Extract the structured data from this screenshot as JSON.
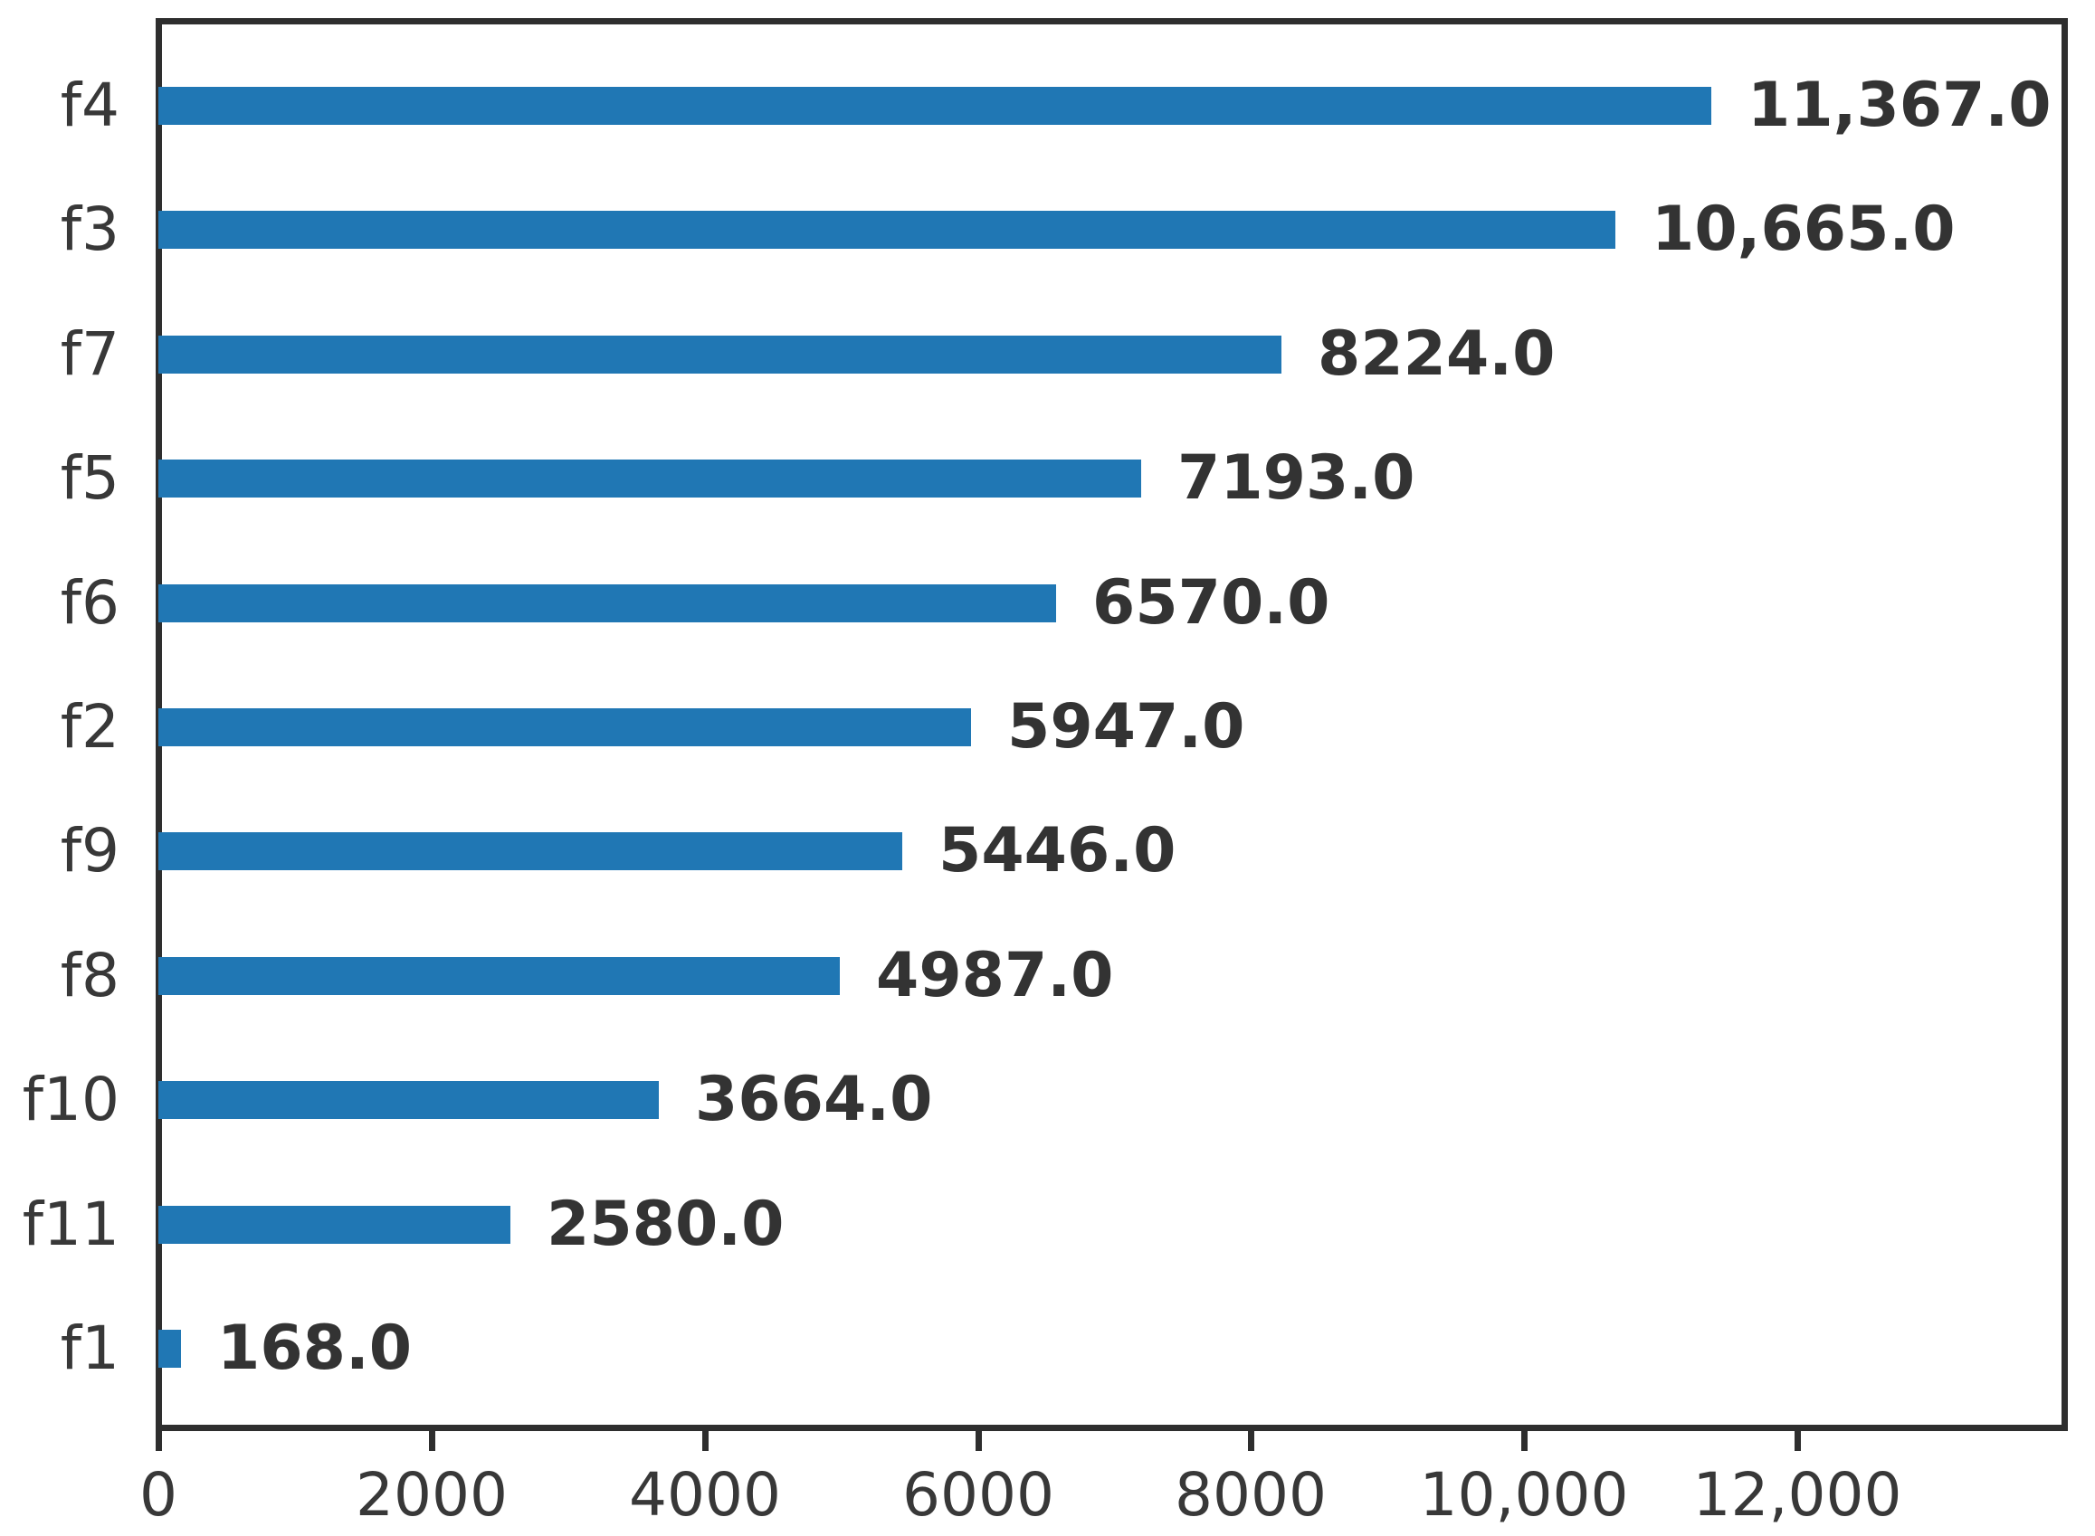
{
  "figure": {
    "background": "#ffffff"
  },
  "chart_data": {
    "type": "bar",
    "orientation": "horizontal",
    "title": "",
    "xlabel": "",
    "ylabel": "",
    "categories": [
      "f4",
      "f3",
      "f7",
      "f5",
      "f6",
      "f2",
      "f9",
      "f8",
      "f10",
      "f11",
      "f1"
    ],
    "values": [
      11367,
      10665,
      8224,
      7193,
      6570,
      5947,
      5446,
      4987,
      3664,
      2580,
      168
    ],
    "value_labels": [
      "11,367.0",
      "10,665.0",
      "8224.0",
      "7193.0",
      "6570.0",
      "5947.0",
      "5446.0",
      "4987.0",
      "3664.0",
      "2580.0",
      "168.0"
    ],
    "x_tick_values": [
      0,
      2000,
      4000,
      6000,
      8000,
      10000,
      12000
    ],
    "x_tick_labels": [
      "0",
      "2000",
      "4000",
      "6000",
      "8000",
      "10,000",
      "12,000"
    ],
    "xlim": [
      0,
      14000
    ],
    "ylim_slots": 11,
    "grid": false,
    "legend": false,
    "bar_color": "#2077b4",
    "spine_color": "#2e2e2e",
    "tick_text_color": "#383838",
    "category_text_color": "#383838",
    "value_label_color": "#333333"
  }
}
